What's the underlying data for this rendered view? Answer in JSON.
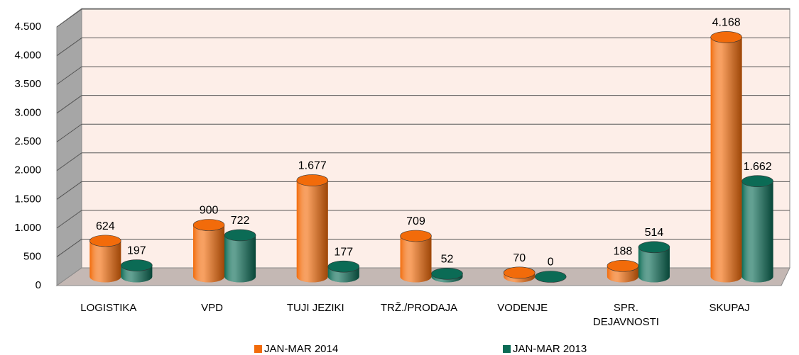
{
  "chart_data": {
    "type": "bar3d",
    "categories": [
      "LOGISTIKA",
      "VPD",
      "TUJI JEZIKI",
      "TRŽ./PRODAJA",
      "VODENJE",
      "SPR. DEJAVNOSTI",
      "SKUPAJ"
    ],
    "series": [
      {
        "name": "JAN-MAR 2014",
        "color": "#f26b0a",
        "values": [
          624,
          900,
          1677,
          709,
          70,
          188,
          4168
        ],
        "value_labels": [
          "624",
          "900",
          "1.677",
          "709",
          "70",
          "188",
          "4.168"
        ]
      },
      {
        "name": "JAN-MAR 2013",
        "color": "#0b6b55",
        "values": [
          197,
          722,
          177,
          52,
          0,
          514,
          1662
        ],
        "value_labels": [
          "197",
          "722",
          "177",
          "52",
          "0",
          "514",
          "1.662"
        ]
      }
    ],
    "ylim": [
      0,
      4500
    ],
    "yticks": [
      0,
      500,
      {
        "value": 1000,
        "label": "1.000"
      },
      {
        "value": 1500,
        "label": "1.500"
      },
      {
        "value": 2000,
        "label": "2.000"
      },
      {
        "value": 2500,
        "label": "2.500"
      },
      {
        "value": 3000,
        "label": "3.000"
      },
      {
        "value": 3500,
        "label": "3.500"
      },
      {
        "value": 4000,
        "label": "4.000"
      },
      {
        "value": 4500,
        "label": "4.500"
      }
    ],
    "grid": true,
    "legend": "bottom"
  }
}
